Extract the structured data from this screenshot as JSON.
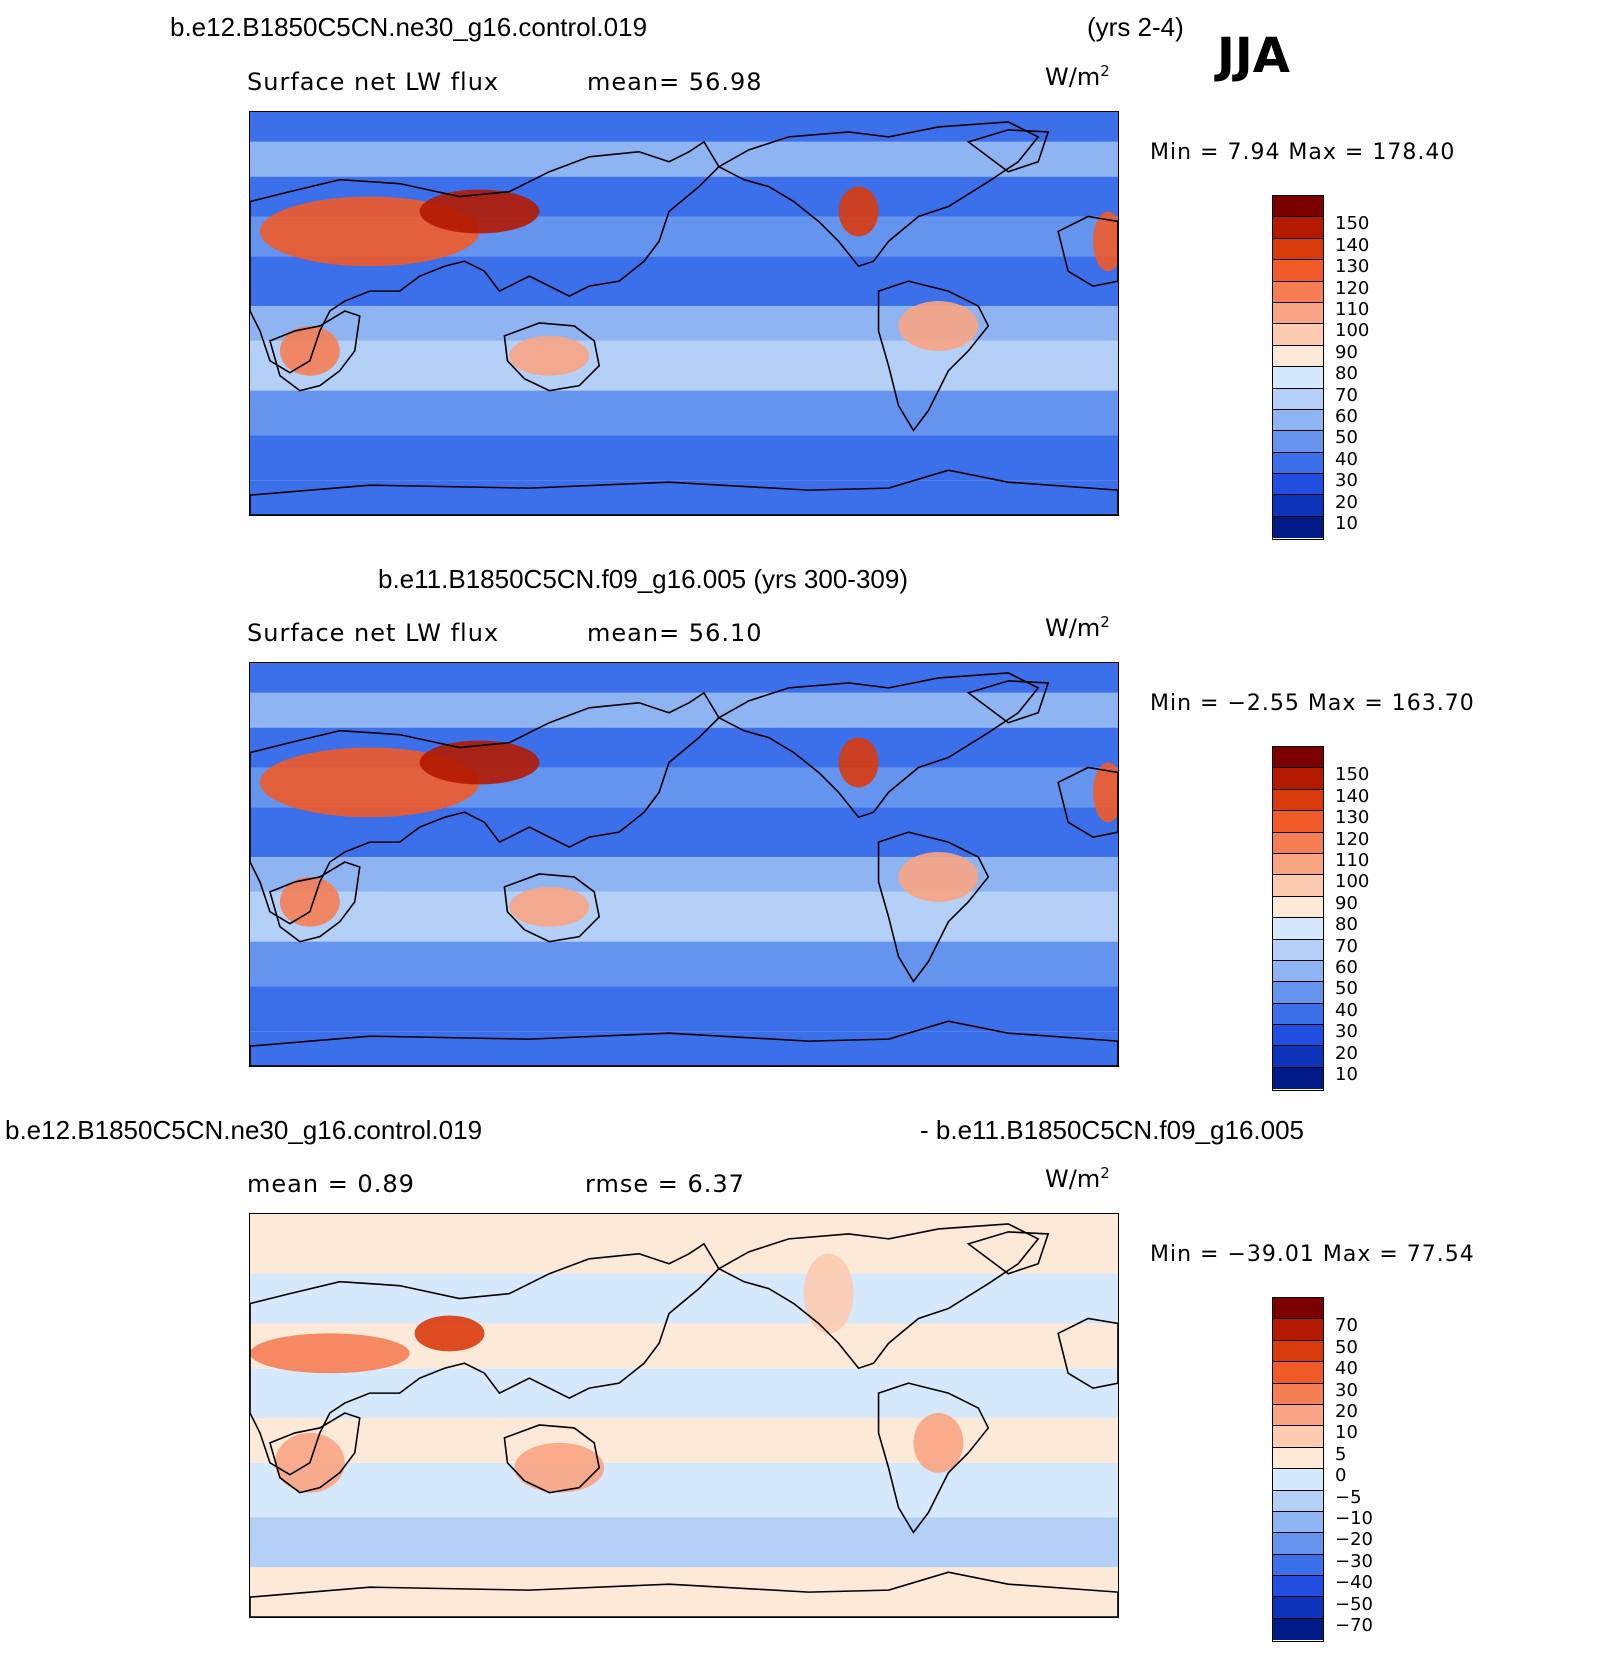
{
  "header": {
    "case_title": "b.e12.B1850C5CN.ne30_g16.control.019",
    "years": "(yrs 2-4)",
    "season": "JJA"
  },
  "panels": [
    {
      "variable": "Surface net LW flux",
      "stat_text": "mean=   56.98",
      "units_base": "W/m",
      "units_exp": "2",
      "minmax": "Min  =    7.94  Max  =  178.40",
      "colorbar": {
        "labels": [
          "150",
          "140",
          "130",
          "120",
          "110",
          "100",
          "90",
          "80",
          "70",
          "60",
          "50",
          "40",
          "30",
          "20",
          "10"
        ],
        "colors": [
          "#7d0000",
          "#b31a00",
          "#d93a0c",
          "#f05a28",
          "#f57e54",
          "#f9a483",
          "#fccbb0",
          "#fde9d8",
          "#d6e8fb",
          "#b4d0f7",
          "#8fb4f2",
          "#6594ee",
          "#3c6fea",
          "#1f4ee0",
          "#0e33bb",
          "#001a88"
        ]
      },
      "map_style": "full"
    },
    {
      "title": "b.e11.B1850C5CN.f09_g16.005 (yrs 300-309)",
      "variable": "Surface net LW flux",
      "stat_text": "mean=   56.10",
      "units_base": "W/m",
      "units_exp": "2",
      "minmax": "Min  =   −2.55  Max  =  163.70",
      "colorbar": {
        "labels": [
          "150",
          "140",
          "130",
          "120",
          "110",
          "100",
          "90",
          "80",
          "70",
          "60",
          "50",
          "40",
          "30",
          "20",
          "10"
        ],
        "colors": [
          "#7d0000",
          "#b31a00",
          "#d93a0c",
          "#f05a28",
          "#f57e54",
          "#f9a483",
          "#fccbb0",
          "#fde9d8",
          "#d6e8fb",
          "#b4d0f7",
          "#8fb4f2",
          "#6594ee",
          "#3c6fea",
          "#1f4ee0",
          "#0e33bb",
          "#001a88"
        ]
      },
      "map_style": "full"
    },
    {
      "title_left": "b.e12.B1850C5CN.ne30_g16.control.019",
      "title_right": "- b.e11.B1850C5CN.f09_g16.005",
      "stat_mean": "mean  =     0.89",
      "stat_rmse": "rmse  =     6.37",
      "units_base": "W/m",
      "units_exp": "2",
      "minmax": "Min  = −39.01  Max  =    77.54",
      "colorbar": {
        "labels": [
          "70",
          "50",
          "40",
          "30",
          "20",
          "10",
          "5",
          "0",
          "−5",
          "−10",
          "−20",
          "−30",
          "−40",
          "−50",
          "−70"
        ],
        "colors": [
          "#7d0000",
          "#b31a00",
          "#d93a0c",
          "#f05a28",
          "#f57e54",
          "#f9a483",
          "#fccbb0",
          "#fde9d8",
          "#d6e8fb",
          "#b4d0f7",
          "#8fb4f2",
          "#6594ee",
          "#3c6fea",
          "#1f4ee0",
          "#0e33bb",
          "#001a88"
        ]
      },
      "map_style": "diff"
    }
  ]
}
